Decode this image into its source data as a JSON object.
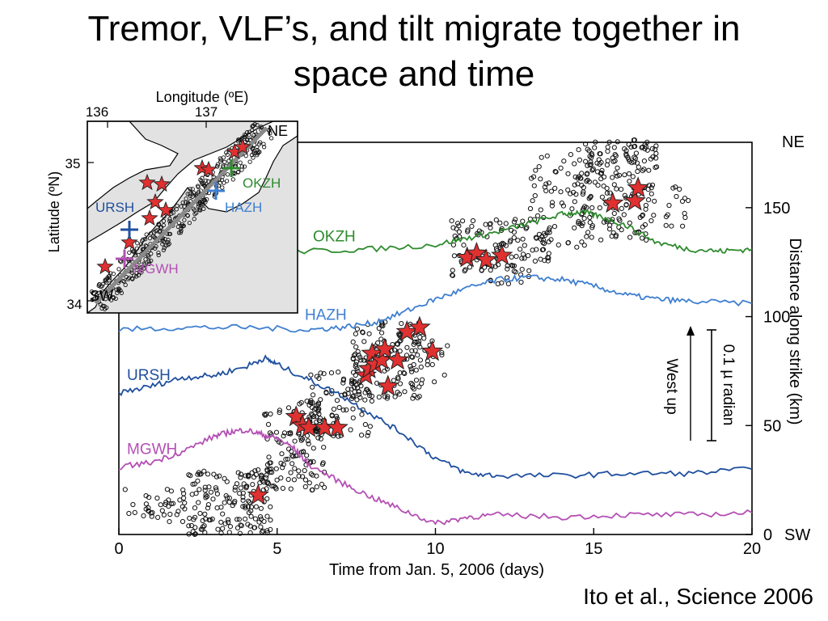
{
  "slide": {
    "title_line1": "Tremor, VLF’s, and tilt migrate together in",
    "title_line2": "space and time",
    "credit": "Ito et al., Science 2006"
  },
  "colors": {
    "OKZH": "#2e8b2e",
    "HAZH": "#3f7fd0",
    "URSH": "#1f4f9e",
    "MGWH": "#b44fb4",
    "star": "#e03030",
    "land": "#ffffff",
    "sea": "#e2e2e2"
  },
  "chart_data": [
    {
      "type": "scatter",
      "xlabel": "Time from Jan. 5, 2006 (days)",
      "ylabel": "Distance along strike (km)",
      "xlim": [
        0,
        20
      ],
      "ylim": [
        0,
        180
      ],
      "xticks": [
        0,
        5,
        10,
        15,
        20
      ],
      "yticks": [
        "0",
        "50",
        "100",
        "150"
      ],
      "dir_top": "NE",
      "dir_bottom": "SW",
      "scale_bar": {
        "amount": "0.1 µ radian",
        "direction": "West up"
      },
      "tilt_series": [
        {
          "name": "OKZH",
          "x": [
            0,
            2,
            4,
            6,
            8,
            10,
            11,
            12,
            13,
            14,
            14.6,
            15.2,
            16,
            17,
            18,
            19,
            20
          ],
          "y": [
            130,
            130,
            131,
            130,
            131,
            133,
            136,
            139,
            143,
            147,
            148,
            146,
            142,
            134,
            131,
            130,
            131
          ]
        },
        {
          "name": "HAZH",
          "x": [
            0,
            2,
            4,
            6,
            7,
            8,
            9,
            10,
            11,
            12,
            13,
            14,
            15,
            16,
            17,
            18,
            20
          ],
          "y": [
            94,
            95,
            95,
            94,
            95,
            97,
            102,
            108,
            113,
            117,
            118,
            117,
            114,
            110,
            108,
            107,
            106
          ]
        },
        {
          "name": "URSH",
          "x": [
            0,
            1,
            2,
            3,
            4,
            4.6,
            5,
            6,
            7,
            8,
            9,
            10,
            11,
            12,
            14,
            16,
            18,
            20
          ],
          "y": [
            65,
            68,
            72,
            73,
            77,
            81,
            78,
            71,
            64,
            55,
            46,
            35,
            28,
            27,
            27,
            28,
            28,
            30
          ]
        },
        {
          "name": "MGWH",
          "x": [
            0,
            1,
            2,
            3,
            3.5,
            4,
            4.5,
            5,
            5.5,
            6,
            7,
            8,
            9,
            10,
            11,
            12,
            14,
            16,
            18,
            20
          ],
          "y": [
            31,
            33,
            38,
            45,
            47,
            48,
            46,
            44,
            40,
            32,
            24,
            17,
            11,
            5,
            8,
            9,
            8,
            9,
            9,
            10
          ]
        }
      ],
      "vlf_events": [
        {
          "x": 4.4,
          "y": 18
        },
        {
          "x": 5.6,
          "y": 54
        },
        {
          "x": 5.8,
          "y": 50
        },
        {
          "x": 6.0,
          "y": 49
        },
        {
          "x": 6.5,
          "y": 49
        },
        {
          "x": 6.9,
          "y": 49
        },
        {
          "x": 7.8,
          "y": 73
        },
        {
          "x": 7.9,
          "y": 76
        },
        {
          "x": 8.0,
          "y": 83
        },
        {
          "x": 8.1,
          "y": 78
        },
        {
          "x": 8.3,
          "y": 80
        },
        {
          "x": 8.4,
          "y": 85
        },
        {
          "x": 8.5,
          "y": 68
        },
        {
          "x": 8.8,
          "y": 80
        },
        {
          "x": 9.1,
          "y": 93
        },
        {
          "x": 9.5,
          "y": 95
        },
        {
          "x": 9.9,
          "y": 84
        },
        {
          "x": 11.0,
          "y": 127
        },
        {
          "x": 11.3,
          "y": 129
        },
        {
          "x": 11.6,
          "y": 126
        },
        {
          "x": 12.1,
          "y": 128
        },
        {
          "x": 15.6,
          "y": 152
        },
        {
          "x": 16.3,
          "y": 153
        },
        {
          "x": 16.4,
          "y": 159
        }
      ],
      "tremor_clusters": [
        {
          "x": [
            0.2,
            2.2
          ],
          "y": [
            5,
            22
          ],
          "n": 40
        },
        {
          "x": [
            2.2,
            4.8
          ],
          "y": [
            0,
            30
          ],
          "n": 160
        },
        {
          "x": [
            4.6,
            6.5
          ],
          "y": [
            20,
            62
          ],
          "n": 130
        },
        {
          "x": [
            6.0,
            8.0
          ],
          "y": [
            45,
            75
          ],
          "n": 90
        },
        {
          "x": [
            7.4,
            9.6
          ],
          "y": [
            62,
            98
          ],
          "n": 140
        },
        {
          "x": [
            9.4,
            10.4
          ],
          "y": [
            70,
            95
          ],
          "n": 20
        },
        {
          "x": [
            10.5,
            13.0
          ],
          "y": [
            115,
            145
          ],
          "n": 110
        },
        {
          "x": [
            13.0,
            15.0
          ],
          "y": [
            125,
            175
          ],
          "n": 100
        },
        {
          "x": [
            14.5,
            17.0
          ],
          "y": [
            135,
            182
          ],
          "n": 180
        },
        {
          "x": [
            17.0,
            18.0
          ],
          "y": [
            140,
            160
          ],
          "n": 15
        }
      ]
    },
    {
      "type": "map",
      "xlabel": "Longitude (ºE)",
      "ylabel": "Latitude (ºN)",
      "xticks": [
        "136",
        "137"
      ],
      "yticks": [
        "35",
        "34"
      ],
      "corner_top": "NE",
      "corner_bottom": "SW",
      "stations": [
        {
          "name": "OKZH",
          "color_key": "OKZH"
        },
        {
          "name": "HAZH",
          "color_key": "HAZH"
        },
        {
          "name": "URSH",
          "color_key": "URSH"
        },
        {
          "name": "MGWH",
          "color_key": "MGWH"
        }
      ]
    }
  ]
}
